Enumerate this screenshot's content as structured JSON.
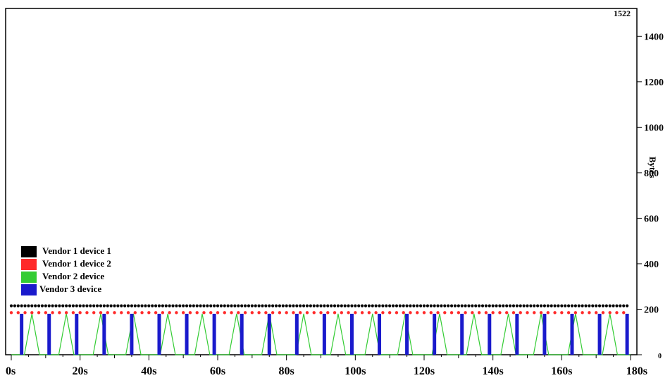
{
  "chart_data": {
    "type": "line",
    "ylabel": "Bytes",
    "annotation": "1522",
    "x": {
      "ticks": [
        "0s",
        "20s",
        "40s",
        "60s",
        "80s",
        "100s",
        "120s",
        "140s",
        "160s",
        "180s"
      ],
      "range": [
        0,
        180
      ]
    },
    "y": {
      "ticks": [
        "0",
        "200",
        "400",
        "600",
        "800",
        "1000",
        "1200",
        "1400"
      ],
      "range": [
        0,
        1522
      ]
    },
    "legend_position": "bottom-left",
    "series": [
      {
        "name": "Vendor 1 device 1",
        "color": "#000000",
        "style": "dots",
        "times": [
          0,
          1,
          2,
          3,
          4,
          5,
          6,
          7,
          8,
          9,
          10,
          11,
          12,
          13,
          14,
          15,
          16,
          17,
          18,
          19,
          20,
          21,
          22,
          23,
          24,
          25,
          26,
          27,
          28,
          29,
          30,
          31,
          32,
          33,
          34,
          35,
          36,
          37,
          38,
          39,
          40,
          41,
          42,
          43,
          44,
          45,
          46,
          47,
          48,
          49,
          50,
          51,
          52,
          53,
          54,
          55,
          56,
          57,
          58,
          59,
          60,
          61,
          62,
          63,
          64,
          65,
          66,
          67,
          68,
          69,
          70,
          71,
          72,
          73,
          74,
          75,
          76,
          77,
          78,
          79,
          80,
          81,
          82,
          83,
          84,
          85,
          86,
          87,
          88,
          89,
          90,
          91,
          92,
          93,
          94,
          95,
          96,
          97,
          98,
          99,
          100,
          101,
          102,
          103,
          104,
          105,
          106,
          107,
          108,
          109,
          110,
          111,
          112,
          113,
          114,
          115,
          116,
          117,
          118,
          119,
          120,
          121,
          122,
          123,
          124,
          125,
          126,
          127,
          128,
          129,
          130,
          131,
          132,
          133,
          134,
          135,
          136,
          137,
          138,
          139,
          140,
          141,
          142,
          143,
          144,
          145,
          146,
          147,
          148,
          149,
          150,
          151,
          152,
          153,
          154,
          155,
          156,
          157,
          158,
          159,
          160,
          161,
          162,
          163,
          164,
          165,
          166,
          167,
          168,
          169,
          170,
          171,
          172,
          173,
          174,
          175,
          176,
          177,
          178,
          179
        ],
        "value": 215
      },
      {
        "name": "Vendor 1 device 2",
        "color": "#ff2a2a",
        "style": "dots",
        "times": [
          0,
          2,
          4,
          6,
          8,
          10,
          12,
          14,
          16,
          18,
          20,
          22,
          24,
          26,
          28,
          30,
          32,
          34,
          36,
          38,
          40,
          42,
          44,
          46,
          48,
          50,
          52,
          54,
          56,
          58,
          60,
          62,
          64,
          66,
          68,
          70,
          72,
          74,
          76,
          78,
          80,
          82,
          84,
          86,
          88,
          90,
          92,
          94,
          96,
          98,
          100,
          102,
          104,
          106,
          108,
          110,
          112,
          114,
          116,
          118,
          120,
          122,
          124,
          126,
          128,
          130,
          132,
          134,
          136,
          138,
          140,
          142,
          144,
          146,
          148,
          150,
          152,
          154,
          156,
          158,
          160,
          162,
          164,
          166,
          168,
          170,
          172,
          174,
          176,
          178
        ],
        "value": 185
      },
      {
        "name": "Vendor 2 device",
        "color": "#33cc33",
        "style": "spikes",
        "times": [
          6,
          16,
          26,
          35.5,
          45.5,
          55.5,
          65.5,
          75,
          85,
          95,
          105,
          114.5,
          124.5,
          134.5,
          144.5,
          154,
          164,
          174
        ],
        "value": 180
      },
      {
        "name": "Vendor 3 device",
        "color": "#1a1acc",
        "style": "bars",
        "times": [
          3,
          11,
          19,
          27,
          35,
          43,
          51,
          59,
          67,
          75,
          83,
          91,
          99,
          107,
          115,
          123,
          131,
          139,
          147,
          155,
          163,
          171,
          179
        ],
        "value": 180
      }
    ]
  }
}
